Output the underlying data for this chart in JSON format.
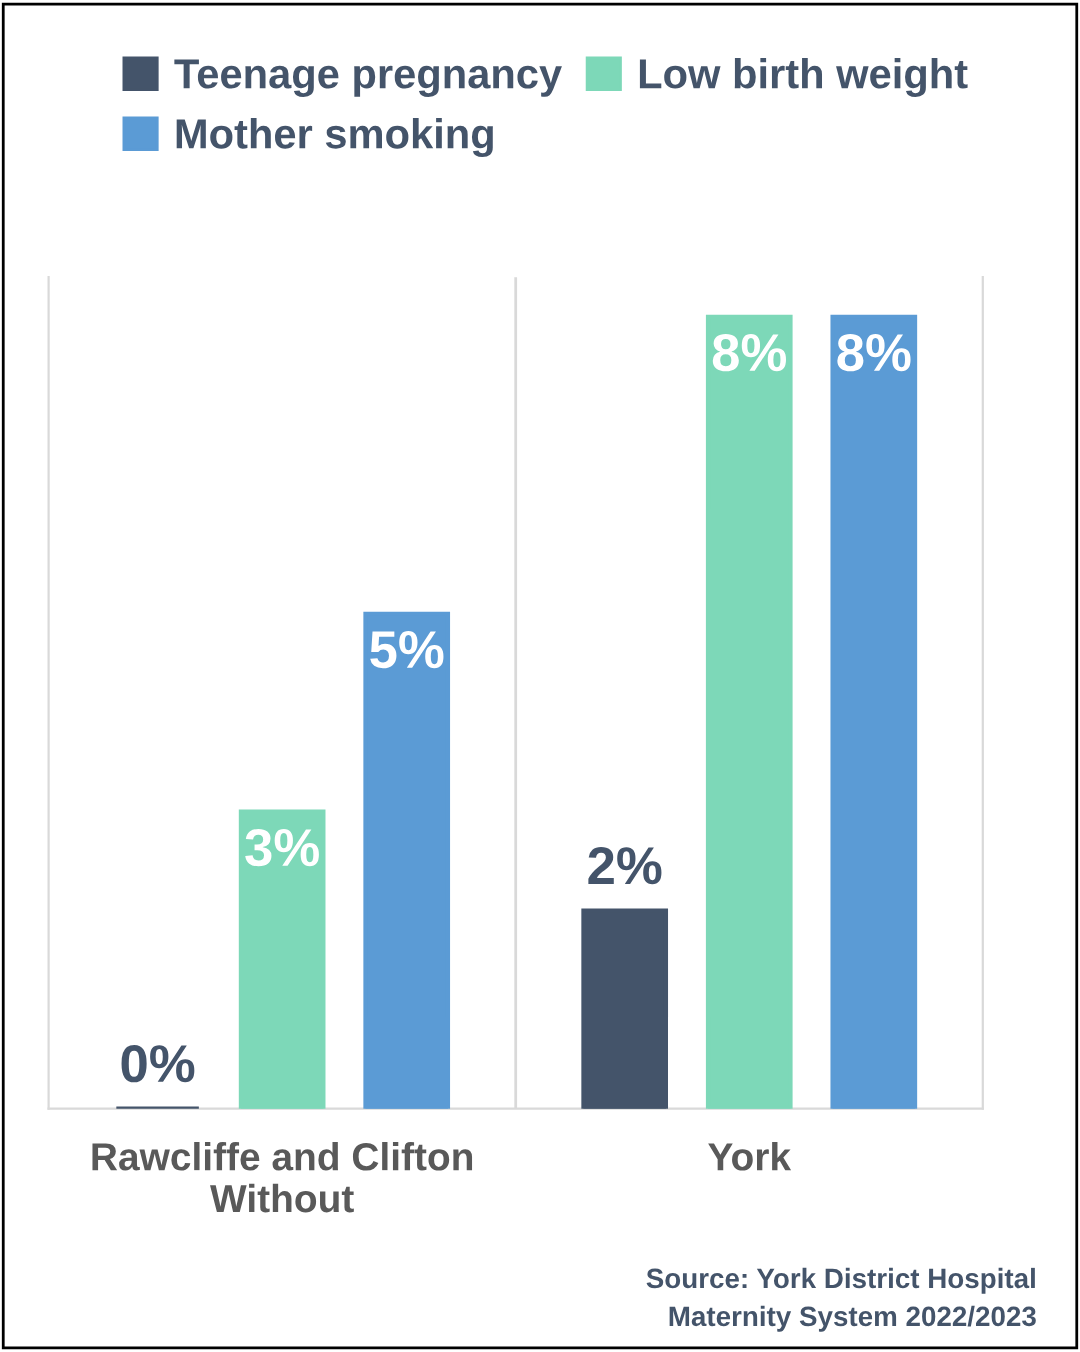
{
  "chart_data": {
    "type": "bar",
    "categories": [
      "Rawcliffe and Clifton\nWithout",
      "York"
    ],
    "series": [
      {
        "name": "Teenage pregnancy",
        "color": "#44546a",
        "values": [
          0,
          2
        ],
        "value_labels": [
          "0%",
          "2%"
        ]
      },
      {
        "name": "Low birth weight",
        "color": "#7dd8b8",
        "values": [
          3,
          8
        ],
        "value_labels": [
          "3%",
          "8%"
        ]
      },
      {
        "name": "Mother smoking",
        "color": "#5b9bd5",
        "values": [
          5,
          8
        ],
        "value_labels": [
          "5%",
          "8%"
        ]
      }
    ],
    "legend": "top",
    "grid": false,
    "annotations": [
      "Source: York District Hospital\nMaternity System 2022/2023"
    ]
  }
}
